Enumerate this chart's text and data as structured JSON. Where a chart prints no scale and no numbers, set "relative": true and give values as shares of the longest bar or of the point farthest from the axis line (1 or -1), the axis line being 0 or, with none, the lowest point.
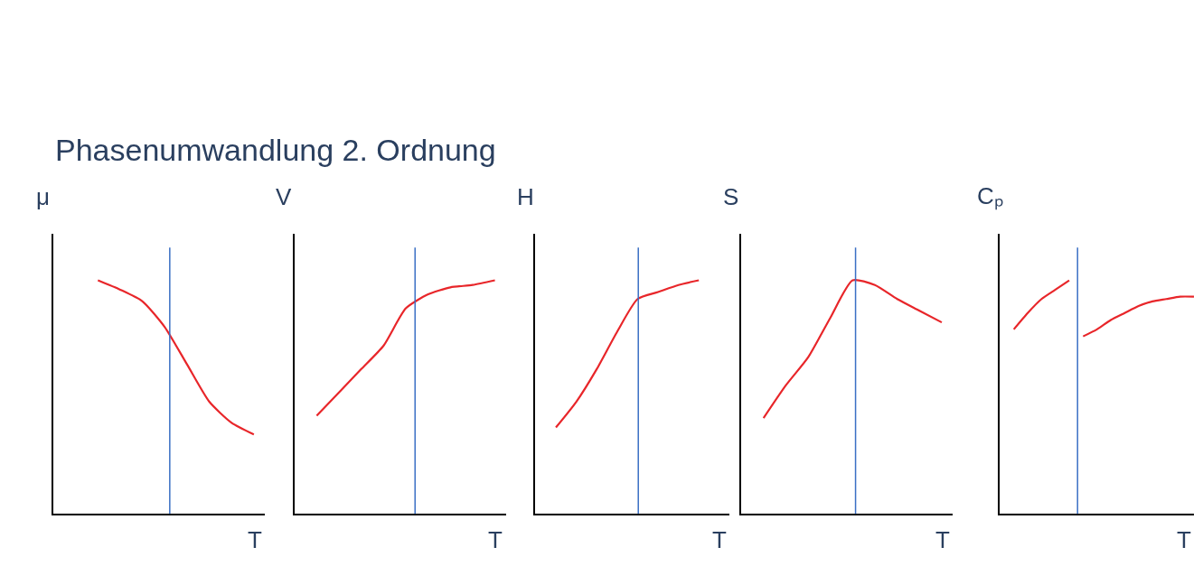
{
  "chart_data": [
    {
      "type": "line",
      "title": "Phasenumwandlung 2. Ordnung",
      "ylabel": "μ",
      "xlabel": "T",
      "relative": true,
      "categories": [
        null,
        null,
        null,
        null,
        null,
        null,
        null,
        null,
        null,
        null
      ],
      "series": [
        {
          "color": "#e8262a",
          "values": [
            null,
            null,
            1.0,
            0.96,
            0.91,
            0.8,
            0.64,
            0.48,
            0.39,
            0.34
          ]
        }
      ]
    },
    {
      "type": "line",
      "ylabel": "V",
      "xlabel": "T",
      "relative": true,
      "categories": [
        null,
        null,
        null,
        null,
        null,
        null,
        null,
        null,
        null,
        null
      ],
      "series": [
        {
          "color": "#e8262a",
          "values": [
            null,
            0.42,
            0.52,
            0.62,
            0.72,
            0.88,
            0.94,
            0.97,
            0.98,
            1.0
          ]
        }
      ]
    },
    {
      "type": "line",
      "ylabel": "H",
      "xlabel": "T",
      "relative": true,
      "categories": [
        null,
        null,
        null,
        null,
        null,
        null,
        null,
        null,
        null,
        null
      ],
      "series": [
        {
          "color": "#e8262a",
          "values": [
            null,
            0.37,
            0.48,
            0.62,
            0.78,
            0.92,
            0.95,
            0.98,
            1.0,
            null
          ]
        }
      ]
    },
    {
      "type": "line",
      "ylabel": "S",
      "xlabel": "T",
      "relative": true,
      "categories": [
        null,
        null,
        null,
        null,
        null,
        null,
        null,
        null,
        null,
        null
      ],
      "series": [
        {
          "color": "#e8262a",
          "values": [
            null,
            0.41,
            0.55,
            0.67,
            0.84,
            1.0,
            0.98,
            0.92,
            0.87,
            0.82
          ]
        }
      ]
    },
    {
      "type": "line",
      "ylabel": "Cₚ",
      "xlabel": "T",
      "relative": true,
      "categories": [
        null,
        null,
        null,
        null,
        null,
        null,
        null,
        null,
        null,
        null,
        null,
        null,
        null,
        null,
        null
      ],
      "series": [
        {
          "color": "#e8262a",
          "values": [
            null,
            0.79,
            0.86,
            0.92,
            0.96,
            1.0,
            null,
            null,
            null,
            null,
            null,
            null,
            null,
            null,
            null
          ]
        },
        {
          "color": "#e8262a",
          "values": [
            null,
            null,
            null,
            null,
            null,
            null,
            0.76,
            0.79,
            0.83,
            0.86,
            0.89,
            0.91,
            0.92,
            0.93,
            0.93
          ]
        }
      ]
    }
  ]
}
